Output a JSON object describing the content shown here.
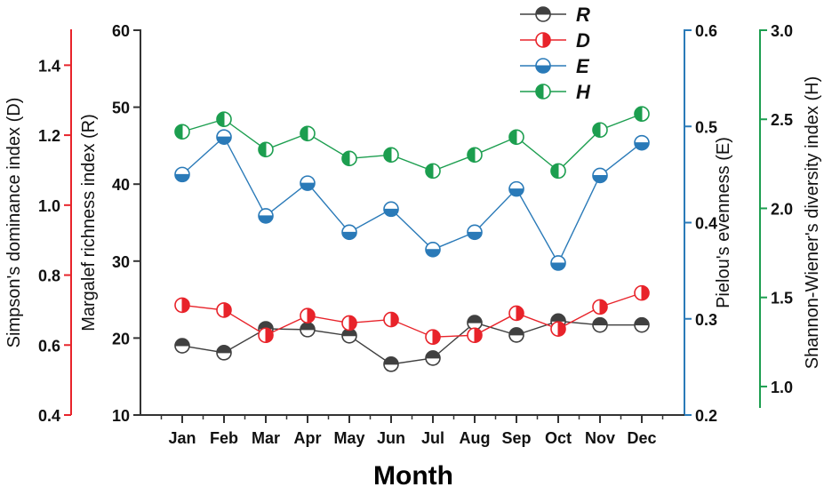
{
  "chart_data": {
    "type": "line",
    "title": "",
    "xlabel": "Month",
    "categories": [
      "Jan",
      "Feb",
      "Mar",
      "Apr",
      "May",
      "Jun",
      "Jul",
      "Aug",
      "Sep",
      "Oct",
      "Nov",
      "Dec"
    ],
    "axes": {
      "D": {
        "label": "Simpson's dominance index (D)",
        "range": [
          0.4,
          1.5
        ],
        "ticks": [
          0.4,
          0.6,
          0.8,
          1.0,
          1.2,
          1.4
        ],
        "tick_labels": [
          "0.4",
          "0.6",
          "0.8",
          "1.0",
          "1.2",
          "1.4"
        ],
        "color": "#e8232a",
        "side": "left-outer"
      },
      "R": {
        "label": "Margalef richness index (R)",
        "range": [
          10,
          60
        ],
        "ticks": [
          10,
          20,
          30,
          40,
          50,
          60
        ],
        "tick_labels": [
          "10",
          "20",
          "30",
          "40",
          "50",
          "60"
        ],
        "color": "#333333",
        "side": "left-inner"
      },
      "E": {
        "label": "Pielou's evenness (E)",
        "range": [
          0.2,
          0.6
        ],
        "ticks": [
          0.2,
          0.3,
          0.4,
          0.5,
          0.6
        ],
        "tick_labels": [
          "0.2",
          "0.3",
          "0.4",
          "0.5",
          "0.6"
        ],
        "color": "#2a7ab8",
        "side": "right-inner"
      },
      "H": {
        "label": "Shannon-Wiener's diversity index (H)",
        "range": [
          0.84,
          3.0
        ],
        "ticks": [
          1.0,
          1.5,
          2.0,
          2.5,
          3.0
        ],
        "tick_labels": [
          "1.0",
          "1.5",
          "2.0",
          "2.5",
          "3.0"
        ],
        "color": "#1c9e4f",
        "side": "right-outer"
      }
    },
    "series": [
      {
        "name": "R",
        "axis": "R",
        "color": "#404040",
        "fill": "top",
        "values": [
          19.0,
          18.1,
          21.2,
          21.1,
          20.3,
          16.6,
          17.4,
          22.0,
          20.4,
          22.2,
          21.7,
          21.7
        ]
      },
      {
        "name": "D",
        "axis": "D",
        "color": "#e8232a",
        "fill": "right",
        "values": [
          0.714,
          0.7,
          0.628,
          0.684,
          0.663,
          0.673,
          0.623,
          0.628,
          0.691,
          0.646,
          0.709,
          0.749
        ]
      },
      {
        "name": "E",
        "axis": "E",
        "color": "#2a7ab8",
        "fill": "bottom",
        "values": [
          0.45,
          0.489,
          0.407,
          0.441,
          0.39,
          0.414,
          0.372,
          0.39,
          0.435,
          0.358,
          0.449,
          0.483
        ]
      },
      {
        "name": "H",
        "axis": "H",
        "color": "#1c9e4f",
        "fill": "left",
        "values": [
          2.43,
          2.5,
          2.33,
          2.42,
          2.28,
          2.3,
          2.21,
          2.3,
          2.4,
          2.21,
          2.44,
          2.53
        ]
      }
    ],
    "legend": {
      "placement": "top-right",
      "entries": [
        "R",
        "D",
        "E",
        "H"
      ]
    },
    "grid": false
  }
}
